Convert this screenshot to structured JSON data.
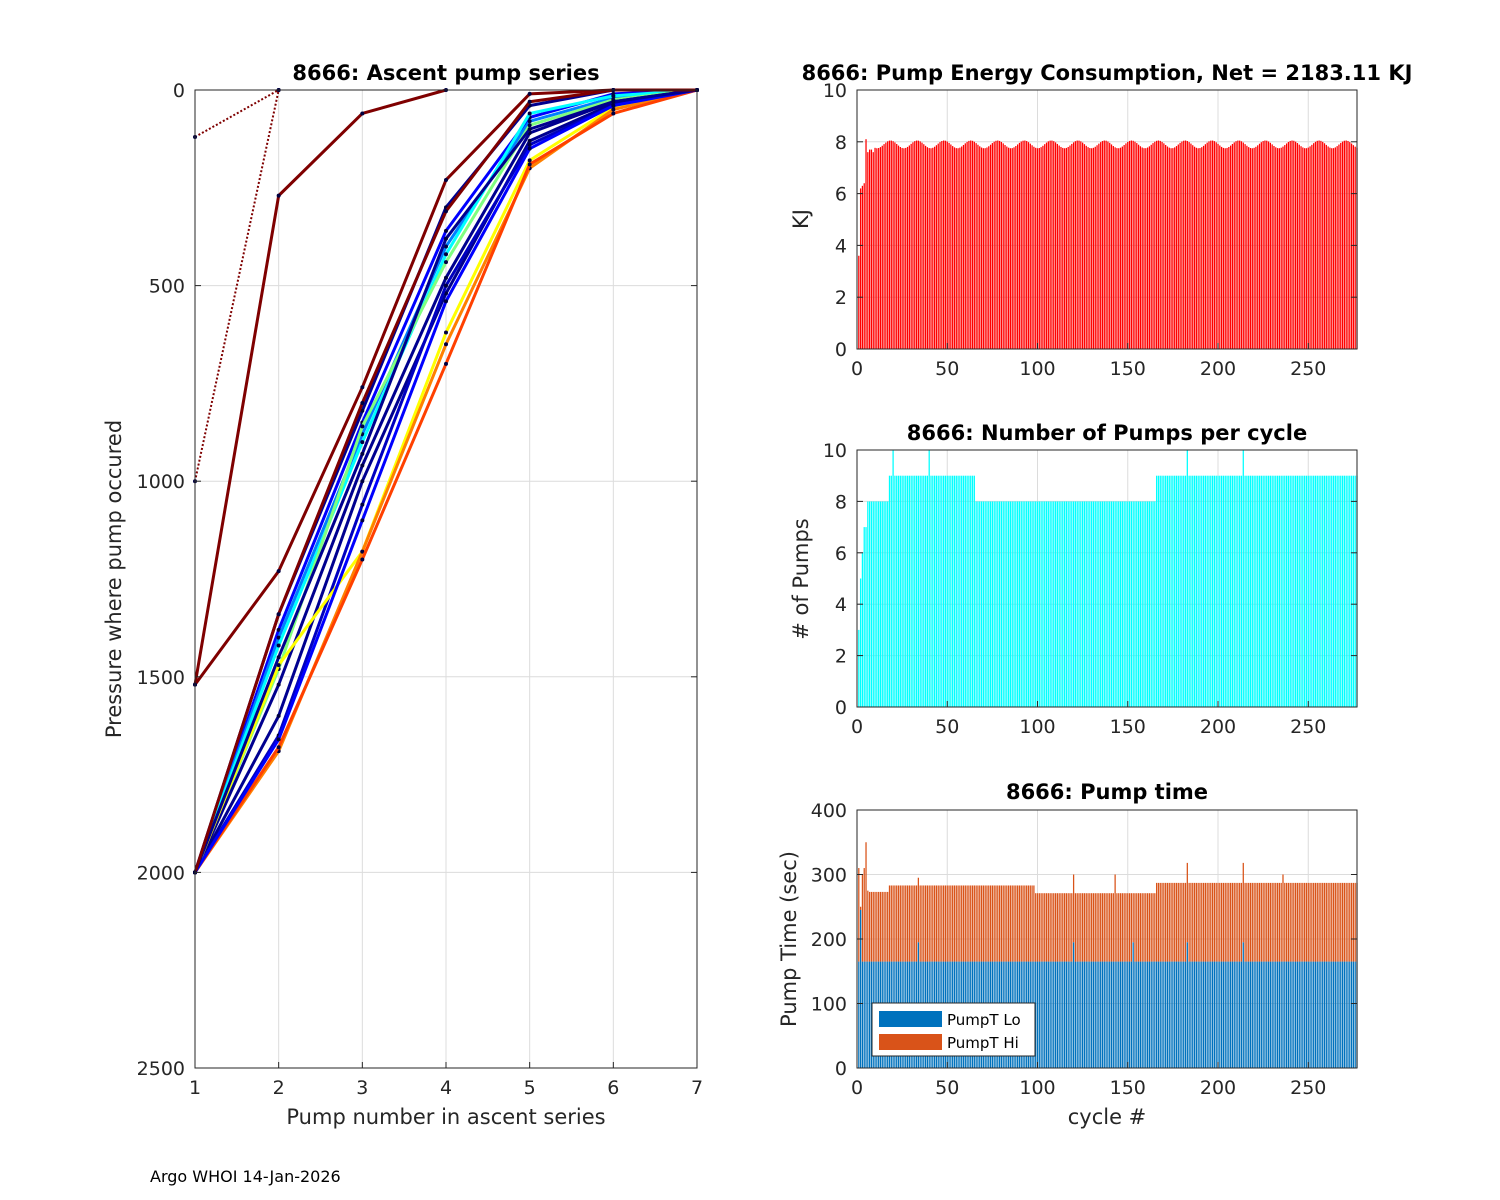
{
  "footer": "Argo WHOI 14-Jan-2026",
  "colors": {
    "energy": "#ff0000",
    "pumps": "#00ffff",
    "pump_lo": "#0072bd",
    "pump_hi": "#d95319"
  },
  "chart_data": [
    {
      "id": "ascent",
      "type": "line",
      "title": "8666: Ascent pump series",
      "xlabel": "Pump number in ascent series",
      "ylabel": "Pressure where pump occured",
      "xlim": [
        1,
        7
      ],
      "ylim": [
        0,
        2500
      ],
      "y_reversed": true,
      "xticks": [
        "1",
        "2",
        "3",
        "4",
        "5",
        "6",
        "7"
      ],
      "yticks": [
        "0",
        "500",
        "1000",
        "1500",
        "2000",
        "2500"
      ],
      "grid": true,
      "series": [
        {
          "name": "cycle-1",
          "color": "#7f0000",
          "dotted": true,
          "x": [
            1,
            2
          ],
          "y": [
            120,
            0
          ]
        },
        {
          "name": "cycle-2",
          "color": "#7f0000",
          "dotted": true,
          "x": [
            1,
            2
          ],
          "y": [
            1000,
            0
          ]
        },
        {
          "name": "cycle-3",
          "color": "#7f0000",
          "dotted": false,
          "x": [
            1,
            2,
            3,
            4
          ],
          "y": [
            1520,
            270,
            60,
            0
          ]
        },
        {
          "name": "cycle-4",
          "color": "#7f0000",
          "dotted": false,
          "x": [
            1,
            2,
            3,
            4,
            5,
            6,
            7
          ],
          "y": [
            1520,
            1230,
            760,
            230,
            10,
            0,
            0
          ]
        },
        {
          "name": "cycle-5",
          "color": "#00008f",
          "dotted": false,
          "x": [
            1,
            2,
            3,
            4,
            5,
            6,
            7
          ],
          "y": [
            2000,
            1340,
            820,
            300,
            40,
            0,
            0
          ]
        },
        {
          "name": "cycle-6",
          "color": "#0000ff",
          "dotted": false,
          "x": [
            1,
            2,
            3,
            4,
            5,
            6,
            7
          ],
          "y": [
            2000,
            1380,
            850,
            360,
            70,
            10,
            0
          ]
        },
        {
          "name": "cycle-7",
          "color": "#0080ff",
          "dotted": false,
          "x": [
            1,
            2,
            3,
            4,
            5,
            6,
            7
          ],
          "y": [
            2000,
            1400,
            880,
            400,
            80,
            20,
            0
          ]
        },
        {
          "name": "cycle-8",
          "color": "#00ffff",
          "dotted": false,
          "x": [
            1,
            2,
            3,
            4,
            5,
            6,
            7
          ],
          "y": [
            2000,
            1420,
            900,
            420,
            60,
            15,
            0
          ]
        },
        {
          "name": "cycle-9",
          "color": "#80ff80",
          "dotted": false,
          "x": [
            1,
            2,
            3,
            4,
            5,
            6,
            7
          ],
          "y": [
            2000,
            1480,
            860,
            440,
            90,
            25,
            0
          ]
        },
        {
          "name": "cycle-10",
          "color": "#00008f",
          "dotted": false,
          "x": [
            1,
            2,
            3,
            4,
            5,
            6,
            7
          ],
          "y": [
            2000,
            1520,
            960,
            480,
            110,
            30,
            0
          ]
        },
        {
          "name": "cycle-11",
          "color": "#000090",
          "dotted": false,
          "x": [
            1,
            2,
            3,
            4,
            5,
            6,
            7
          ],
          "y": [
            2000,
            1600,
            1000,
            520,
            130,
            35,
            0
          ]
        },
        {
          "name": "cycle-12",
          "color": "#0000c0",
          "dotted": false,
          "x": [
            1,
            2,
            3,
            4,
            5,
            6,
            7
          ],
          "y": [
            2000,
            1650,
            1060,
            500,
            140,
            40,
            0
          ]
        },
        {
          "name": "cycle-13",
          "color": "#ffff00",
          "dotted": false,
          "x": [
            1,
            2,
            3,
            4,
            5,
            6,
            7
          ],
          "y": [
            2000,
            1470,
            1180,
            620,
            180,
            45,
            0
          ]
        },
        {
          "name": "cycle-14",
          "color": "#ff8000",
          "dotted": false,
          "x": [
            1,
            2,
            3,
            4,
            5,
            6,
            7
          ],
          "y": [
            2000,
            1690,
            1180,
            650,
            200,
            50,
            0
          ]
        },
        {
          "name": "cycle-15",
          "color": "#ff4000",
          "dotted": false,
          "x": [
            1,
            2,
            3,
            4,
            5,
            6,
            7
          ],
          "y": [
            2000,
            1680,
            1200,
            700,
            190,
            60,
            0
          ]
        },
        {
          "name": "cycle-16",
          "color": "#0000ff",
          "dotted": false,
          "x": [
            1,
            2,
            3,
            4,
            5,
            6,
            7
          ],
          "y": [
            2000,
            1660,
            1100,
            540,
            150,
            40,
            0
          ]
        },
        {
          "name": "cycle-17",
          "color": "#00008f",
          "dotted": false,
          "x": [
            1,
            2,
            3,
            4,
            5,
            6,
            7
          ],
          "y": [
            2000,
            1450,
            930,
            380,
            100,
            30,
            0
          ]
        },
        {
          "name": "cycle-18",
          "color": "#7f0000",
          "dotted": false,
          "x": [
            1,
            2,
            3,
            4,
            5,
            6,
            7
          ],
          "y": [
            2000,
            1340,
            800,
            310,
            30,
            0,
            0
          ]
        }
      ]
    },
    {
      "id": "energy",
      "type": "bar",
      "title": "8666: Pump Energy Consumption,  Net = 2183.11 KJ",
      "xlabel": "",
      "ylabel": "KJ",
      "xlim": [
        0,
        277
      ],
      "ylim": [
        0,
        10
      ],
      "xticks": [
        "0",
        "50",
        "100",
        "150",
        "200",
        "250"
      ],
      "yticks": [
        "0",
        "2",
        "4",
        "6",
        "8",
        "10"
      ],
      "grid": true,
      "n_cycles": 277,
      "first_values": [
        3.6,
        6.2,
        6.3,
        6.4,
        8.1,
        7.6,
        7.7,
        7.7,
        7.6
      ],
      "typical_value": 7.9,
      "variation": 0.15
    },
    {
      "id": "pumps",
      "type": "bar",
      "title": "8666: Number of Pumps per cycle",
      "xlabel": "",
      "ylabel": "# of Pumps",
      "xlim": [
        0,
        277
      ],
      "ylim": [
        0,
        10
      ],
      "xticks": [
        "0",
        "50",
        "100",
        "150",
        "200",
        "250"
      ],
      "yticks": [
        "0",
        "2",
        "4",
        "6",
        "8",
        "10"
      ],
      "grid": true,
      "n_cycles": 277,
      "first_values": [
        3,
        5,
        6,
        7,
        7,
        8
      ],
      "segments": [
        {
          "from": 7,
          "to": 17,
          "value": 8
        },
        {
          "from": 18,
          "to": 65,
          "value": 9
        },
        {
          "from": 66,
          "to": 99,
          "value": 8
        },
        {
          "from": 100,
          "to": 165,
          "value": 8
        },
        {
          "from": 166,
          "to": 199,
          "value": 9
        },
        {
          "from": 200,
          "to": 277,
          "value": 9
        }
      ],
      "spikes_10": [
        20,
        40,
        183,
        214
      ]
    },
    {
      "id": "time",
      "type": "bar",
      "stacked": true,
      "title": "8666: Pump time",
      "xlabel": "cycle #",
      "ylabel": "Pump Time (sec)",
      "xlim": [
        0,
        277
      ],
      "ylim": [
        0,
        400
      ],
      "xticks": [
        "0",
        "50",
        "100",
        "150",
        "200",
        "250"
      ],
      "yticks": [
        "0",
        "100",
        "200",
        "300",
        "400"
      ],
      "grid": true,
      "legend": [
        "PumpT Lo",
        "PumpT Hi"
      ],
      "legend_position": "lower-left",
      "n_cycles": 277,
      "lo_value": 165,
      "lo_spikes": [
        {
          "cycle": 2,
          "value": 245
        },
        {
          "cycle": 34,
          "value": 195
        },
        {
          "cycle": 120,
          "value": 195
        },
        {
          "cycle": 153,
          "value": 195
        },
        {
          "cycle": 183,
          "value": 195
        },
        {
          "cycle": 214,
          "value": 195
        }
      ],
      "total_first": [
        310,
        250,
        300,
        310,
        350,
        275
      ],
      "total_segments": [
        {
          "from": 6,
          "to": 17,
          "value": 273
        },
        {
          "from": 18,
          "to": 98,
          "value": 283
        },
        {
          "from": 99,
          "to": 165,
          "value": 271
        },
        {
          "from": 166,
          "to": 277,
          "value": 287
        }
      ],
      "total_spikes": [
        {
          "cycle": 34,
          "value": 295
        },
        {
          "cycle": 120,
          "value": 300
        },
        {
          "cycle": 143,
          "value": 300
        },
        {
          "cycle": 183,
          "value": 318
        },
        {
          "cycle": 214,
          "value": 318
        },
        {
          "cycle": 236,
          "value": 300
        }
      ]
    }
  ]
}
